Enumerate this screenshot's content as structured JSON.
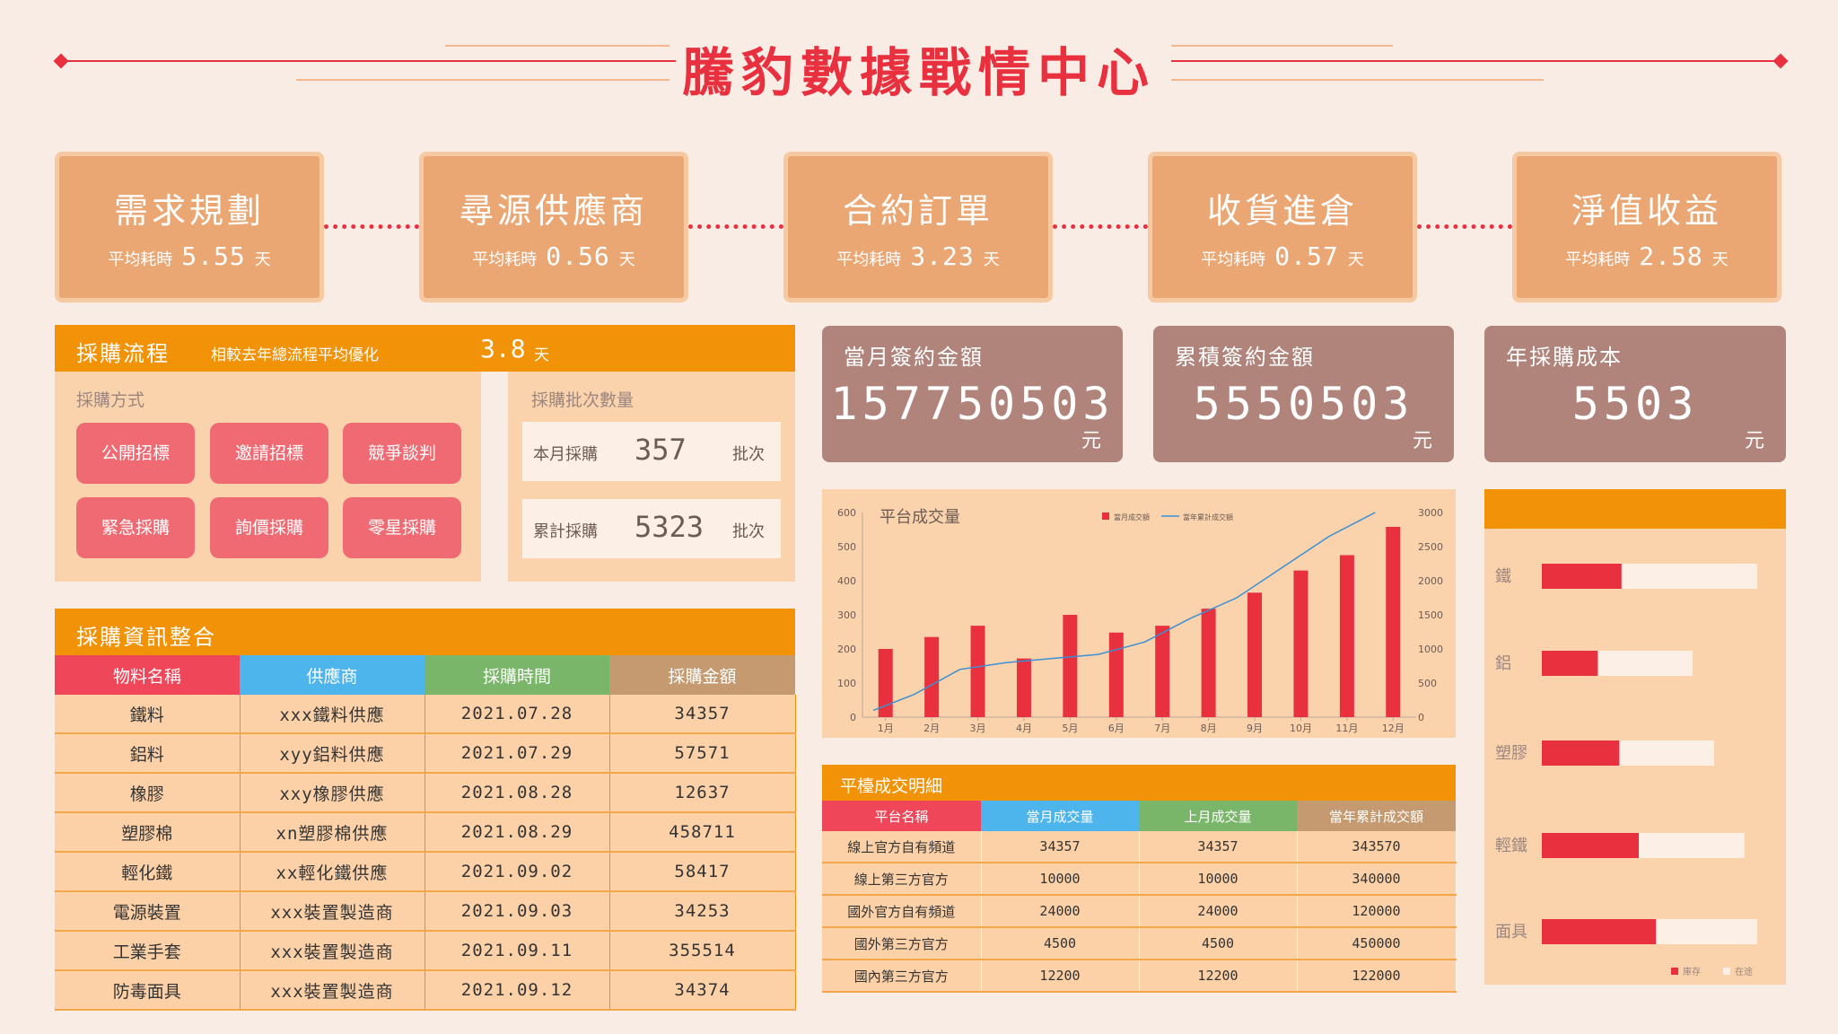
{
  "title": "騰豹數據戰情中心",
  "colors": {
    "accent": "#e8303f",
    "orange": "#f29206",
    "panel": "#fad3ac",
    "kpi": "#b0847b",
    "bar": "#e8303f",
    "line": "#3b8fd6"
  },
  "stages": [
    {
      "name": "需求規劃",
      "prefix": "平均耗時",
      "value": "5.55",
      "unit": "天"
    },
    {
      "name": "尋源供應商",
      "prefix": "平均耗時",
      "value": "0.56",
      "unit": "天"
    },
    {
      "name": "合約訂單",
      "prefix": "平均耗時",
      "value": "3.23",
      "unit": "天"
    },
    {
      "name": "收貨進倉",
      "prefix": "平均耗時",
      "value": "0.57",
      "unit": "天"
    },
    {
      "name": "淨值收益",
      "prefix": "平均耗時",
      "value": "2.58",
      "unit": "天"
    }
  ],
  "process": {
    "title": "採購流程",
    "note": "相較去年總流程平均優化",
    "note_value": "3.8",
    "note_unit": "天",
    "methods_label": "採購方式",
    "methods": [
      "公開招標",
      "邀請招標",
      "競爭談判",
      "緊急採購",
      "詢價採購",
      "零星採購"
    ],
    "batch_label": "採購批次數量",
    "batches": [
      {
        "label": "本月採購",
        "value": "357",
        "unit": "批次"
      },
      {
        "label": "累計採購",
        "value": "5323",
        "unit": "批次"
      }
    ]
  },
  "kpis": [
    {
      "label": "當月簽約金額",
      "value": "157750503",
      "unit": "元"
    },
    {
      "label": "累積簽約金額",
      "value": "5550503",
      "unit": "元"
    },
    {
      "label": "年採購成本",
      "value": "5503",
      "unit": "元"
    }
  ],
  "info_table": {
    "title": "採購資訊整合",
    "headers": [
      "物料名稱",
      "供應商",
      "採購時間",
      "採購金額"
    ],
    "rows": [
      [
        "鐵料",
        "xxx鐵料供應",
        "2021.07.28",
        "34357"
      ],
      [
        "鋁料",
        "xyy鋁料供應",
        "2021.07.29",
        "57571"
      ],
      [
        "橡膠",
        "xxy橡膠供應",
        "2021.08.28",
        "12637"
      ],
      [
        "塑膠棉",
        "xn塑膠棉供應",
        "2021.08.29",
        "458711"
      ],
      [
        "輕化鐵",
        "xx輕化鐵供應",
        "2021.09.02",
        "58417"
      ],
      [
        "電源裝置",
        "xxx裝置製造商",
        "2021.09.03",
        "34253"
      ],
      [
        "工業手套",
        "xxx裝置製造商",
        "2021.09.11",
        "355514"
      ],
      [
        "防毒面具",
        "xxx裝置製造商",
        "2021.09.12",
        "34374"
      ]
    ]
  },
  "platform_table": {
    "title": "平檯成交明細",
    "headers": [
      "平台名稱",
      "當月成交量",
      "上月成交量",
      "當年累計成交額"
    ],
    "rows": [
      [
        "線上官方自有頻道",
        "34357",
        "34357",
        "343570"
      ],
      [
        "線上第三方官方",
        "10000",
        "10000",
        "340000"
      ],
      [
        "國外官方自有頻道",
        "24000",
        "24000",
        "120000"
      ],
      [
        "國外第三方官方",
        "4500",
        "4500",
        "450000"
      ],
      [
        "國內第三方官方",
        "12200",
        "12200",
        "122000"
      ]
    ]
  },
  "chart_data": [
    {
      "type": "bar",
      "title": "平台成交量",
      "categories": [
        "1月",
        "2月",
        "3月",
        "4月",
        "5月",
        "6月",
        "7月",
        "8月",
        "9月",
        "10月",
        "11月",
        "12月"
      ],
      "series": [
        {
          "name": "當月成交額",
          "type": "bar",
          "axis": "left",
          "values": [
            200,
            235,
            268,
            172,
            300,
            248,
            268,
            318,
            365,
            430,
            475,
            558
          ]
        },
        {
          "name": "當年累計成交額",
          "type": "line",
          "axis": "right",
          "values": [
            100,
            330,
            700,
            800,
            860,
            920,
            1100,
            1450,
            1750,
            2200,
            2650,
            3000
          ]
        }
      ],
      "ylim": [
        0,
        600
      ],
      "yticks": [
        0,
        100,
        200,
        300,
        400,
        500,
        600
      ],
      "y2lim": [
        0,
        3000
      ],
      "y2ticks": [
        0,
        500,
        1000,
        1500,
        2000,
        2500,
        3000
      ],
      "legend": "top"
    },
    {
      "type": "bar",
      "orientation": "horizontal",
      "categories": [
        "鐵",
        "鋁",
        "塑膠",
        "輕鐵",
        "面具"
      ],
      "series": [
        {
          "name": "庫存",
          "values": [
            0.37,
            0.26,
            0.36,
            0.45,
            0.53
          ]
        },
        {
          "name": "在途",
          "values": [
            1.0,
            0.7,
            0.8,
            0.94,
            1.0
          ]
        }
      ],
      "legend": "bottom-right"
    }
  ]
}
